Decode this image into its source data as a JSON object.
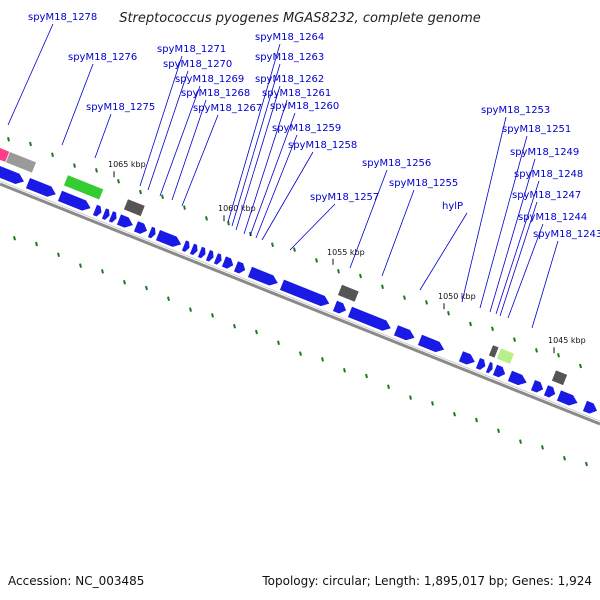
{
  "title": "Streptococcus pyogenes MGAS8232, complete genome",
  "footer": {
    "accession": "Accession: NC_003485",
    "info": "Topology: circular; Length: 1,895,017 bp; Genes: 1,924"
  },
  "colors": {
    "forward_gene": "#1a1ae6",
    "rrna_gene": "#33cc33",
    "pseudo_gene": "#9a9a9a",
    "highlight_pink": "#ff3d8a",
    "trna_gene": "#b7f08a",
    "label": "#0000cc",
    "track_line": "#8a8a8a",
    "gc_ticks": "#1e7a1e"
  },
  "ticks": [
    {
      "label": "1065 kbp"
    },
    {
      "label": "1060 kbp"
    },
    {
      "label": "1055 kbp"
    },
    {
      "label": "1050 kbp"
    },
    {
      "label": "1045 kbp"
    }
  ],
  "gene_labels": [
    {
      "text": "spyM18_1278"
    },
    {
      "text": "spyM18_1276"
    },
    {
      "text": "spyM18_1275"
    },
    {
      "text": "spyM18_1271"
    },
    {
      "text": "spyM18_1270"
    },
    {
      "text": "spyM18_1269"
    },
    {
      "text": "spyM18_1268"
    },
    {
      "text": "spyM18_1267"
    },
    {
      "text": "spyM18_1264"
    },
    {
      "text": "spyM18_1263"
    },
    {
      "text": "spyM18_1262"
    },
    {
      "text": "spyM18_1261"
    },
    {
      "text": "spyM18_1260"
    },
    {
      "text": "spyM18_1259"
    },
    {
      "text": "spyM18_1258"
    },
    {
      "text": "spyM18_1257"
    },
    {
      "text": "spyM18_1256"
    },
    {
      "text": "spyM18_1255"
    },
    {
      "text": "hylP"
    },
    {
      "text": "spyM18_1253"
    },
    {
      "text": "spyM18_1251"
    },
    {
      "text": "spyM18_1249"
    },
    {
      "text": "spyM18_1248"
    },
    {
      "text": "spyM18_1247"
    },
    {
      "text": "spyM18_1244"
    },
    {
      "text": "spyM18_1243"
    }
  ]
}
